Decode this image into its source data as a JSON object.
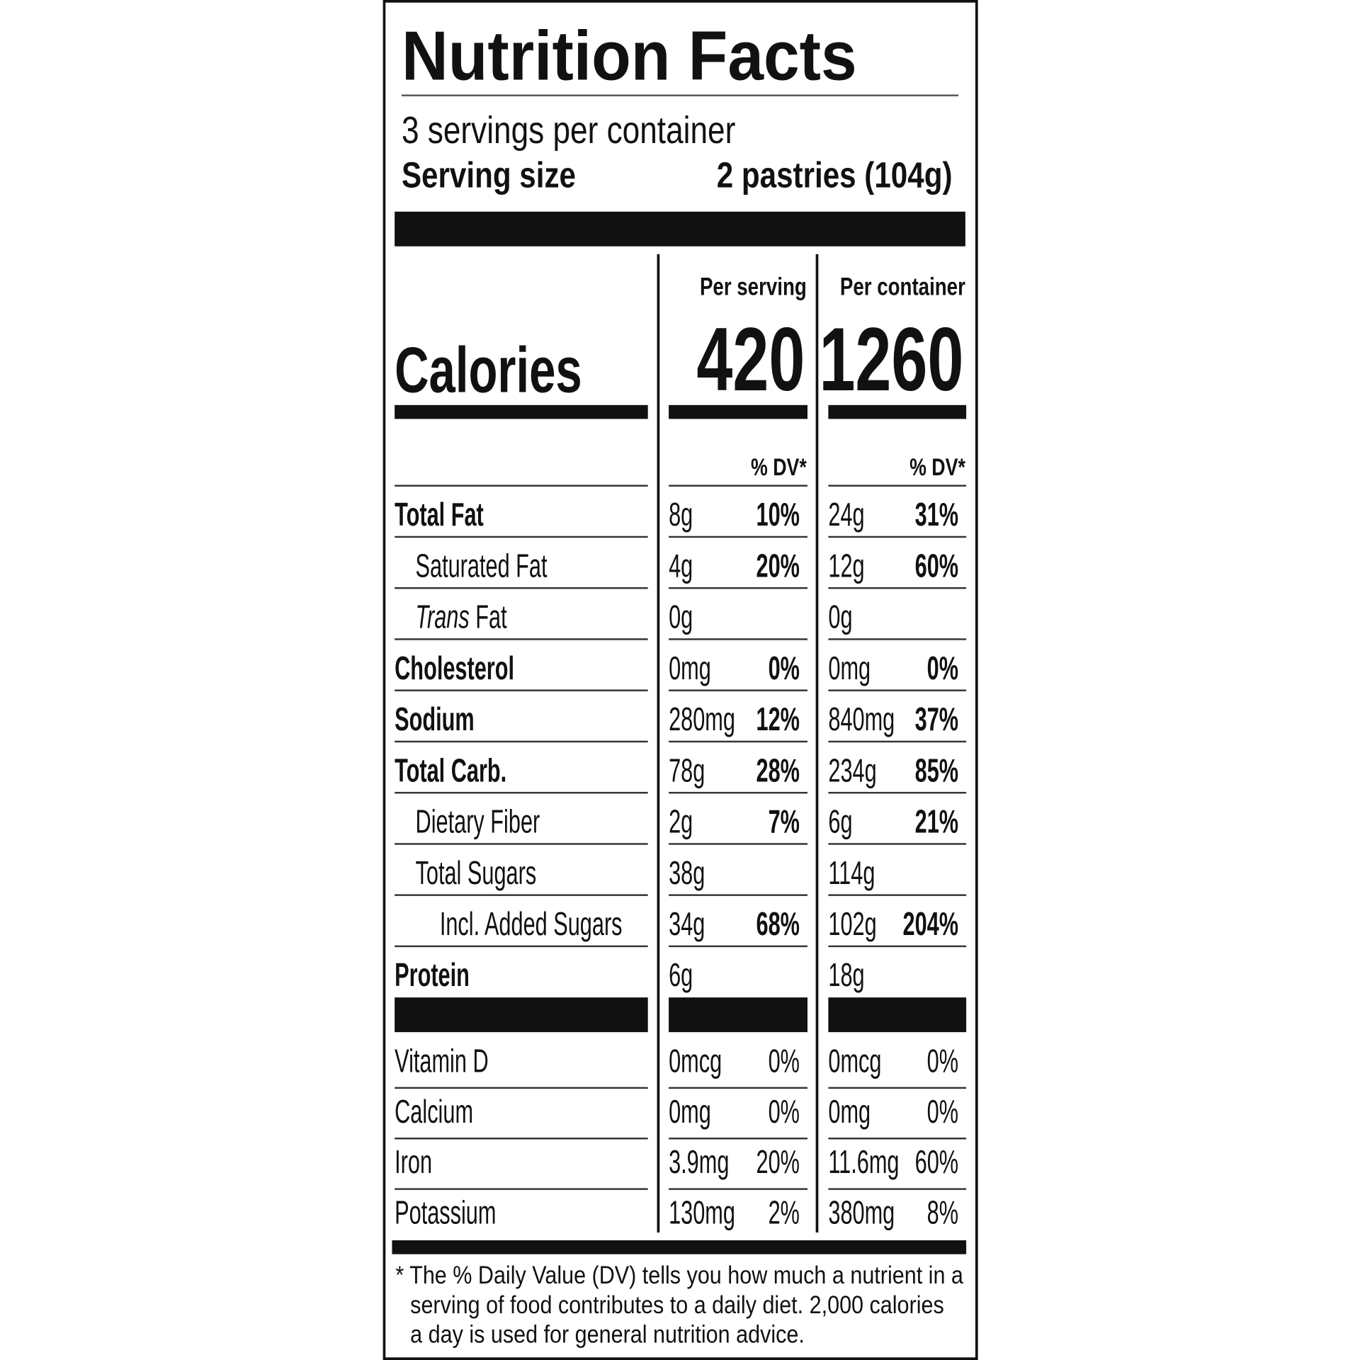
{
  "header": {
    "title": "Nutrition Facts",
    "servings": "3 servings per container",
    "serving_size_label": "Serving size",
    "serving_size": "2 pastries (104g)"
  },
  "columns": [
    "Per serving",
    "Per container"
  ],
  "calories": {
    "label": "Calories",
    "values": [
      420,
      1260
    ]
  },
  "dv_headers": [
    "% DV*",
    "% DV*"
  ],
  "nutrients": [
    {
      "label": "Total Fat",
      "per_serving": [
        "8g",
        "10%"
      ],
      "per_container": [
        "24g",
        "31%"
      ]
    },
    {
      "label": "Saturated Fat",
      "per_serving": [
        "4g",
        "20%"
      ],
      "per_container": [
        "12g",
        "60%"
      ]
    },
    {
      "label": "Trans Fat",
      "per_serving": [
        "0g"
      ],
      "per_container": [
        "0g"
      ]
    },
    {
      "label": "Cholesterol",
      "per_serving": [
        "0mg",
        "0%"
      ],
      "per_container": [
        "0mg",
        "0%"
      ]
    },
    {
      "label": "Sodium",
      "per_serving": [
        "280mg",
        "12%"
      ],
      "per_container": [
        "840mg",
        "37%"
      ]
    },
    {
      "label": "Total Carb.",
      "per_serving": [
        "78g",
        "28%"
      ],
      "per_container": [
        "234g",
        "85%"
      ]
    },
    {
      "label": "Dietary Fiber",
      "per_serving": [
        "2g",
        "7%"
      ],
      "per_container": [
        "6g",
        "21%"
      ]
    },
    {
      "label": "Total Sugars",
      "per_serving": [
        "38g"
      ],
      "per_container": [
        "114g"
      ]
    },
    {
      "label": "Incl. Added Sugars",
      "per_serving": [
        "34g",
        "68%"
      ],
      "per_container": [
        "102g",
        "204%"
      ]
    },
    {
      "label": "Protein",
      "per_serving": [
        "6g"
      ],
      "per_container": [
        "18g"
      ]
    }
  ],
  "vitamins": [
    {
      "label": "Vitamin D",
      "per_serving": [
        "0mcg",
        "0%"
      ],
      "per_container": [
        "0mcg",
        "0%"
      ]
    },
    {
      "label": "Calcium",
      "per_serving": [
        "0mg",
        "0%"
      ],
      "per_container": [
        "0mg",
        "0%"
      ]
    },
    {
      "label": "Iron",
      "per_serving": [
        "3.9mg",
        "20%"
      ],
      "per_container": [
        "11.6mg",
        "60%"
      ]
    },
    {
      "label": "Potassium",
      "per_serving": [
        "130mg",
        "2%"
      ],
      "per_container": [
        "380mg",
        "8%"
      ]
    }
  ],
  "footnote": [
    "* The % Daily Value (DV) tells you how much a nutrient in a",
    "serving of food contributes to a daily diet. 2,000 calories",
    "a day is used for general nutrition advice."
  ]
}
